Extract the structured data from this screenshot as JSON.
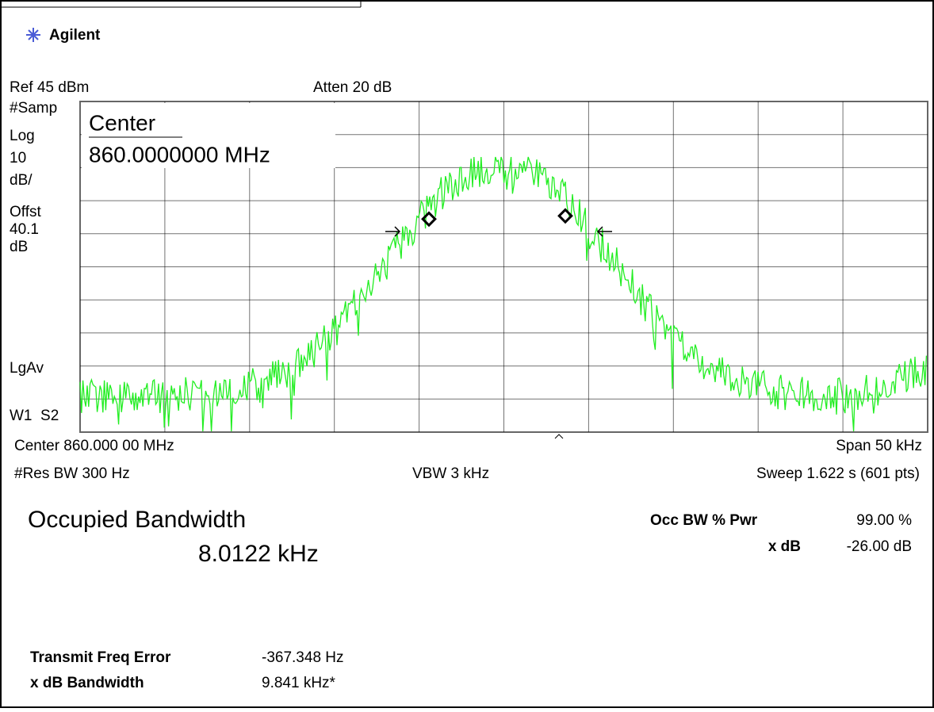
{
  "header": {
    "brand": "Agilent"
  },
  "settings": {
    "ref": "Ref 45 dBm",
    "atten": "Atten 20 dB",
    "left_labels": [
      "#Samp",
      "Log",
      "10",
      "dB/",
      "Offst",
      "40.1",
      "dB"
    ],
    "avg_label": "LgAv",
    "trace_label": "W1  S2",
    "center_label": "Center",
    "center_value": "860.0000000 MHz"
  },
  "footer": {
    "center": "Center 860.000 00 MHz",
    "span": "Span 50 kHz",
    "res_bw": "#Res BW 300 Hz",
    "vbw": "VBW 3 kHz",
    "sweep": "Sweep 1.622 s (601 pts)"
  },
  "results": {
    "title": "Occupied Bandwidth",
    "value": "8.0122 kHz",
    "occ_bw_label": "Occ BW % Pwr",
    "occ_bw_value": "99.00 %",
    "xdb_label": "x dB",
    "xdb_value": "-26.00 dB",
    "tx_err_label": "Transmit Freq Error",
    "tx_err_value": "-367.348 Hz",
    "xdb_bw_label": "x dB Bandwidth",
    "xdb_bw_value": "9.841 kHz*"
  }
}
